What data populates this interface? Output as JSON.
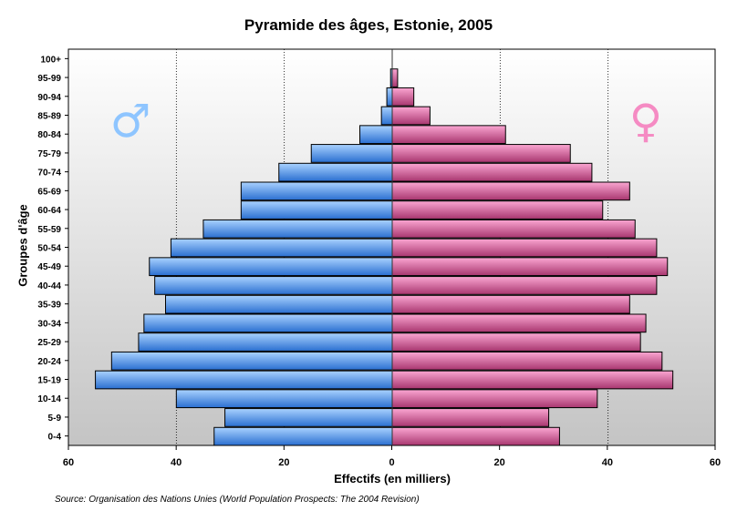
{
  "chart_data": {
    "type": "bar",
    "orientation": "horizontal-pyramid",
    "title": "Pyramide des âges, Estonie, 2005",
    "xlabel": "Effectifs (en milliers)",
    "ylabel": "Groupes d'âge",
    "xlim": [
      -60,
      60
    ],
    "xticks": [
      "60",
      "40",
      "20",
      "0",
      "20",
      "40",
      "60"
    ],
    "categories": [
      "0-4",
      "5-9",
      "10-14",
      "15-19",
      "20-24",
      "25-29",
      "30-34",
      "35-39",
      "40-44",
      "45-49",
      "50-54",
      "55-59",
      "60-64",
      "65-69",
      "70-74",
      "75-79",
      "80-84",
      "85-89",
      "90-94",
      "95-99",
      "100+"
    ],
    "series": [
      {
        "name": "Hommes",
        "symbol": "♂",
        "color": "#5b9bea",
        "values": [
          33,
          31,
          40,
          55,
          52,
          47,
          46,
          42,
          44,
          45,
          41,
          35,
          28,
          28,
          21,
          15,
          6,
          2,
          1,
          0.3,
          0
        ]
      },
      {
        "name": "Femmes",
        "symbol": "♀",
        "color": "#e46aa6",
        "values": [
          31,
          29,
          38,
          52,
          50,
          46,
          47,
          44,
          49,
          51,
          49,
          45,
          39,
          44,
          37,
          33,
          21,
          7,
          4,
          1,
          0
        ]
      }
    ],
    "grid": true,
    "source": "Source: Organisation des Nations Unies (World Population Prospects: The 2004 Revision)"
  }
}
